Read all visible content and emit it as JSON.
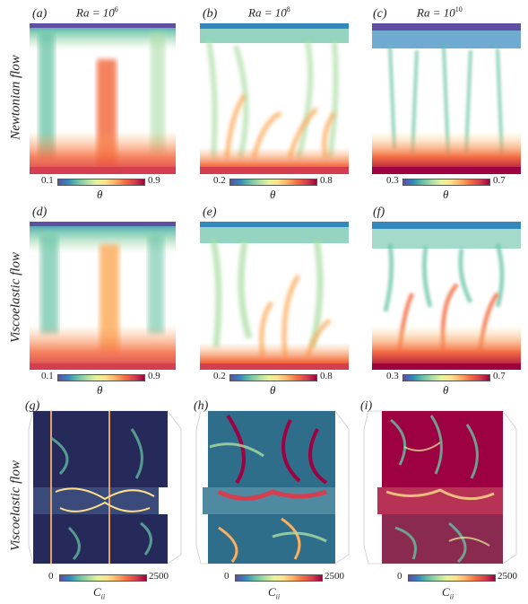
{
  "headers": {
    "col1": {
      "prefix": "Ra = 10",
      "exp": "6"
    },
    "col2": {
      "prefix": "Ra = 10",
      "exp": "8"
    },
    "col3": {
      "prefix": "Ra = 10",
      "exp": "10"
    }
  },
  "row_labels": {
    "row1": "Newtonian flow",
    "row2": "Viscoelastic flow",
    "row3": "Viscoelastic flow"
  },
  "panels": [
    "(a)",
    "(b)",
    "(c)",
    "(d)",
    "(e)",
    "(f)",
    "(g)",
    "(h)",
    "(i)"
  ],
  "colorbars": {
    "theta_row1": [
      {
        "min": "0.1",
        "max": "0.9"
      },
      {
        "min": "0.2",
        "max": "0.8"
      },
      {
        "min": "0.3",
        "max": "0.7"
      }
    ],
    "theta_row2": [
      {
        "min": "0.1",
        "max": "0.9"
      },
      {
        "min": "0.2",
        "max": "0.8"
      },
      {
        "min": "0.3",
        "max": "0.7"
      }
    ],
    "cii_row3": [
      {
        "min": "0",
        "max": "2500"
      },
      {
        "min": "0",
        "max": "2500"
      },
      {
        "min": "0",
        "max": "2500"
      }
    ]
  },
  "symbols": {
    "theta": "θ",
    "cii_main": "C",
    "cii_sub": "ii"
  },
  "colors": {
    "spectral": [
      "#5e4fa2",
      "#3288bd",
      "#66c2a5",
      "#abdda4",
      "#e6f598",
      "#fee08b",
      "#fdae61",
      "#f46d43",
      "#d53e4f",
      "#9e0142"
    ],
    "bg_dark": "#262a5a"
  }
}
